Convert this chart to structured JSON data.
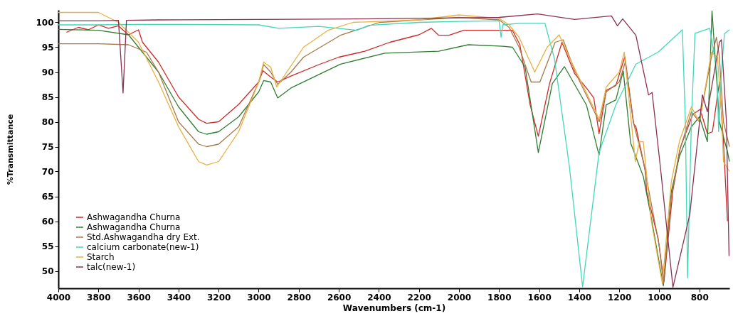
{
  "chart_data": {
    "type": "line",
    "xlabel": "Wavenumbers (cm-1)",
    "ylabel": "%Transmittance",
    "xlim": [
      4000,
      650
    ],
    "ylim": [
      46.5,
      102.5
    ],
    "xticks": [
      4000,
      3800,
      3600,
      3400,
      3200,
      3000,
      2800,
      2600,
      2400,
      2200,
      2000,
      1800,
      1600,
      1400,
      1200,
      1000,
      800
    ],
    "yticks": [
      50,
      55,
      60,
      65,
      70,
      75,
      80,
      85,
      90,
      95,
      100
    ],
    "grid": false,
    "legend": "bottom left",
    "series": [
      {
        "name": "Ashwagandha Churna",
        "color": "#d02828",
        "x": [
          3960,
          3900,
          3850,
          3800,
          3750,
          3700,
          3650,
          3600,
          3580,
          3500,
          3400,
          3300,
          3260,
          3200,
          3100,
          3000,
          2979,
          2940,
          2905,
          2839,
          2700,
          2600,
          2470,
          2345,
          2200,
          2138,
          2101,
          2050,
          1976,
          1780,
          1733,
          1696,
          1645,
          1604,
          1548,
          1486,
          1423,
          1364,
          1327,
          1301,
          1265,
          1217,
          1172,
          1128,
          1117,
          1069,
          1064,
          1006,
          977,
          933,
          896,
          833,
          796,
          760,
          735,
          700,
          680,
          660
        ],
        "values": [
          98,
          99,
          98.5,
          99.5,
          98.8,
          99.3,
          97.5,
          98.5,
          96,
          92,
          85,
          80.5,
          79.7,
          80,
          83.5,
          88,
          90.3,
          89,
          88,
          89.2,
          91.5,
          93,
          94.2,
          96,
          97.5,
          98.8,
          97.4,
          97.4,
          98.4,
          98.4,
          98.4,
          95.5,
          83.4,
          77.1,
          87.7,
          96,
          89.7,
          86.8,
          84.8,
          77.6,
          86.3,
          87.3,
          93.1,
          79.6,
          79,
          70,
          66,
          56.5,
          47.8,
          66,
          74.7,
          81.5,
          82.5,
          77.6,
          78,
          88,
          76,
          60
        ]
      },
      {
        "name": "Ashwagandha Churna",
        "color": "#2e7d32",
        "x": [
          4000,
          3800,
          3650,
          3600,
          3500,
          3400,
          3300,
          3260,
          3200,
          3100,
          3000,
          2975,
          2940,
          2905,
          2839,
          2592,
          2370,
          2101,
          1954,
          1780,
          1733,
          1670,
          1604,
          1534,
          1474,
          1364,
          1301,
          1265,
          1217,
          1180,
          1143,
          1080,
          1043,
          980,
          940,
          900,
          840,
          800,
          760,
          737,
          700,
          660,
          650
        ],
        "values": [
          98.6,
          98.4,
          97.5,
          95,
          90,
          83,
          78,
          77.5,
          78,
          81,
          86,
          88.3,
          88,
          84.8,
          86.8,
          91.6,
          93.8,
          94.2,
          95.5,
          95.2,
          95,
          91,
          73.8,
          87.7,
          91.1,
          83.4,
          73.3,
          83.4,
          84.4,
          90.2,
          75.7,
          69,
          61.3,
          47,
          66,
          73,
          79,
          81,
          76,
          102.3,
          80,
          74,
          72
        ]
      },
      {
        "name": "Std.Ashwagandha dry Ext.",
        "color": "#a87848",
        "x": [
          4000,
          3800,
          3650,
          3560,
          3500,
          3400,
          3300,
          3260,
          3200,
          3100,
          3000,
          2975,
          2940,
          2905,
          2839,
          2776,
          2592,
          2396,
          2200,
          2000,
          1800,
          1750,
          1700,
          1640,
          1596,
          1520,
          1480,
          1420,
          1300,
          1265,
          1200,
          1170,
          1130,
          1080,
          1000,
          980,
          940,
          900,
          840,
          800,
          740,
          715,
          700,
          680,
          650
        ],
        "values": [
          95.7,
          95.7,
          95.5,
          94,
          90,
          80,
          75.5,
          75,
          75.5,
          79,
          88,
          91.5,
          90,
          87.5,
          90,
          93,
          97.4,
          100,
          100.5,
          101,
          100.5,
          99,
          95,
          88,
          88,
          96,
          96.5,
          90,
          80,
          86,
          88,
          92,
          80,
          72,
          55,
          47.5,
          65,
          74,
          82,
          80,
          93,
          97,
          93,
          80,
          75
        ]
      },
      {
        "name": "calcium carbonate(new-1)",
        "color": "#40d8b8",
        "x": [
          4000,
          3800,
          3600,
          3400,
          3000,
          2900,
          2700,
          2510,
          2450,
          2200,
          2000,
          1800,
          1790,
          1781,
          1700,
          1571,
          1523,
          1449,
          1383,
          1301,
          1217,
          1117,
          1006,
          885,
          870,
          859,
          840,
          822,
          748,
          712,
          704,
          690,
          675,
          650
        ],
        "values": [
          99.5,
          99.5,
          99.6,
          99.6,
          99.5,
          98.8,
          99.2,
          98.4,
          99.4,
          100,
          100.2,
          100.3,
          97,
          99.5,
          99.8,
          99.8,
          92.6,
          71,
          46.8,
          73.8,
          83.4,
          91.6,
          94,
          98.5,
          80,
          48.6,
          80,
          97.8,
          98.8,
          90,
          78,
          90,
          97.7,
          98.5
        ]
      },
      {
        "name": "Starch",
        "color": "#e8b040",
        "x": [
          4000,
          3800,
          3700,
          3600,
          3500,
          3400,
          3300,
          3260,
          3200,
          3100,
          3000,
          2975,
          2940,
          2910,
          2776,
          2654,
          2529,
          2200,
          2000,
          1800,
          1750,
          1700,
          1622,
          1560,
          1500,
          1450,
          1300,
          1265,
          1200,
          1175,
          1140,
          1120,
          1100,
          1080,
          1040,
          985,
          940,
          900,
          840,
          800,
          740,
          710,
          690,
          680,
          650
        ],
        "values": [
          102,
          102,
          100,
          96,
          88,
          79,
          72,
          71.3,
          72,
          78,
          88,
          92,
          91,
          87,
          95,
          98.4,
          100,
          100.5,
          101.5,
          100.8,
          99.5,
          97,
          90,
          95,
          97.5,
          93,
          80.5,
          87,
          90,
          94,
          80,
          72,
          76,
          76,
          60,
          47.5,
          68,
          76,
          83,
          80,
          94,
          93,
          82,
          72,
          70
        ]
      },
      {
        "name": "talc(new-1)",
        "color": "#8b3050",
        "x": [
          4000,
          3800,
          3700,
          3677,
          3660,
          3500,
          3000,
          2500,
          2000,
          1800,
          1607,
          1423,
          1239,
          1209,
          1183,
          1117,
          1054,
          1036,
          995,
          932,
          848,
          785,
          760,
          700,
          690,
          665,
          652
        ],
        "values": [
          100.3,
          100.3,
          100.4,
          85.8,
          100.4,
          100.5,
          100.6,
          100.7,
          100.9,
          101,
          101.7,
          100.6,
          101.3,
          99.3,
          100.7,
          97.4,
          85.4,
          85.9,
          71,
          46.7,
          61.3,
          85.4,
          82,
          96,
          96.5,
          80,
          53
        ]
      }
    ]
  }
}
